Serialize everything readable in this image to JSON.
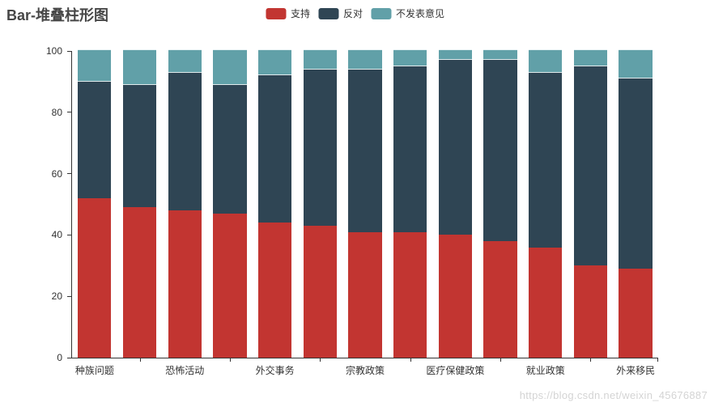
{
  "title": "Bar-堆叠柱形图",
  "watermark": "https://blog.csdn.net/weixin_45676887",
  "legend": {
    "items": [
      {
        "label": "支持",
        "color": "#c23531"
      },
      {
        "label": "反对",
        "color": "#2f4554"
      },
      {
        "label": "不发表意见",
        "color": "#61a0a8"
      }
    ]
  },
  "colors": {
    "support_red": "#c23531",
    "oppose_dark": "#2f4554",
    "neutral_teal": "#61a0a8",
    "axis": "#333333",
    "title_text": "#464646",
    "watermark_gray": "#d4d4d4"
  },
  "chart_data": {
    "type": "bar",
    "stacked": true,
    "title": "Bar-堆叠柱形图",
    "num_bars": 13,
    "categories_visible": [
      "种族问题",
      "恐怖活动",
      "外交事务",
      "宗教政策",
      "医疗保健政策",
      "就业政策",
      "外来移民"
    ],
    "visible_label_bar_indices": [
      0,
      2,
      4,
      6,
      8,
      10,
      12
    ],
    "series": [
      {
        "name": "支持",
        "color": "#c23531",
        "values": [
          52,
          49,
          48,
          47,
          44,
          43,
          41,
          41,
          40,
          38,
          36,
          30,
          29
        ]
      },
      {
        "name": "反对",
        "color": "#2f4554",
        "values": [
          38,
          40,
          45,
          42,
          48,
          51,
          53,
          54,
          57,
          59,
          57,
          65,
          62
        ]
      },
      {
        "name": "不发表意见",
        "color": "#61a0a8",
        "values": [
          10,
          11,
          7,
          11,
          8,
          6,
          6,
          5,
          3,
          3,
          7,
          5,
          9
        ]
      }
    ],
    "ylim": [
      0,
      100
    ],
    "yticks": [
      0,
      20,
      40,
      60,
      80,
      100
    ],
    "xlabel": "",
    "ylabel": "",
    "grid": false,
    "legend_position": "top-center"
  }
}
